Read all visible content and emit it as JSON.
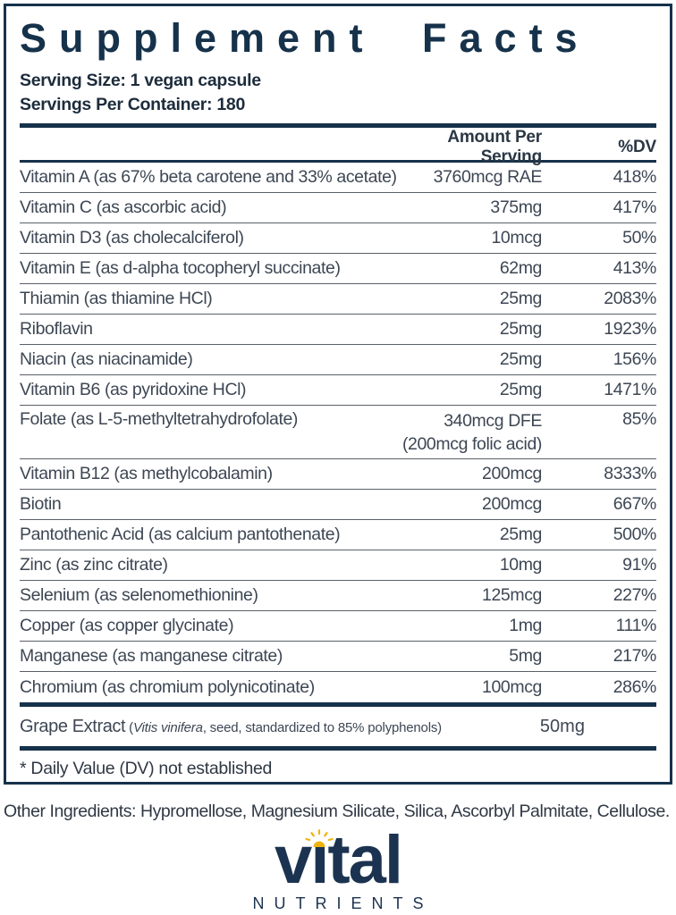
{
  "colors": {
    "navy": "#16324b",
    "row_text": "#3d4754",
    "separator": "#5a6068",
    "logo_navy": "#1b3350",
    "sun_yellow": "#efb310"
  },
  "label": {
    "title": "Supplement Facts",
    "serving_size": "Serving Size: 1 vegan capsule",
    "servings_per_container": "Servings Per Container: 180",
    "header": {
      "amount": "Amount Per Serving",
      "dv": "%DV"
    },
    "nutrients": [
      {
        "name": "Vitamin A (as 67% beta carotene and 33% acetate)",
        "amount": "3760mcg RAE",
        "dv": "418%"
      },
      {
        "name": "Vitamin C (as ascorbic acid)",
        "amount": "375mg",
        "dv": "417%"
      },
      {
        "name": "Vitamin D3 (as cholecalciferol)",
        "amount": "10mcg",
        "dv": "50%"
      },
      {
        "name": "Vitamin E (as d-alpha tocopheryl succinate)",
        "amount": "62mg",
        "dv": "413%"
      },
      {
        "name": "Thiamin (as thiamine HCl)",
        "amount": "25mg",
        "dv": "2083%"
      },
      {
        "name": "Riboflavin",
        "amount": "25mg",
        "dv": "1923%"
      },
      {
        "name": "Niacin (as niacinamide)",
        "amount": "25mg",
        "dv": "156%"
      },
      {
        "name": "Vitamin B6 (as pyridoxine HCl)",
        "amount": "25mg",
        "dv": "1471%"
      },
      {
        "name": "Folate (as L-5-methyltetrahydrofolate)",
        "amount": "340mcg DFE",
        "amount2": "(200mcg folic acid)",
        "dv": "85%"
      },
      {
        "name": "Vitamin B12 (as methylcobalamin)",
        "amount": "200mcg",
        "dv": "8333%"
      },
      {
        "name": "Biotin",
        "amount": "200mcg",
        "dv": "667%"
      },
      {
        "name": "Pantothenic Acid (as calcium pantothenate)",
        "amount": "25mg",
        "dv": "500%"
      },
      {
        "name": "Zinc (as zinc citrate)",
        "amount": "10mg",
        "dv": "91%"
      },
      {
        "name": "Selenium (as selenomethionine)",
        "amount": "125mcg",
        "dv": "227%"
      },
      {
        "name": "Copper (as copper glycinate)",
        "amount": "1mg",
        "dv": "111%"
      },
      {
        "name": "Manganese (as manganese citrate)",
        "amount": "5mg",
        "dv": "217%"
      },
      {
        "name": "Chromium (as chromium polynicotinate)",
        "amount": "100mcg",
        "dv": "286%"
      }
    ],
    "extract_row": {
      "name": "Grape Extract",
      "detail_open": " (",
      "species": "Vitis vinifera",
      "detail_rest": ", seed, standardized to 85% polyphenols)",
      "amount": "50mg",
      "dv": "*"
    },
    "footnote": "* Daily Value (DV) not established"
  },
  "other_ingredients": "Other Ingredients: Hypromellose, Magnesium Silicate, Silica, Ascorbyl Palmitate, Cellulose.",
  "logo": {
    "wordmark": "vital",
    "word_pre": "v",
    "word_i": "ı",
    "word_post": "tal",
    "tagline": "NUTRIENTS"
  }
}
